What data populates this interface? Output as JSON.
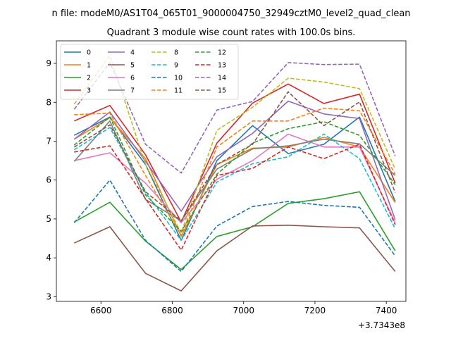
{
  "chart_data": {
    "type": "line",
    "suptitle": "n file: modeM0/AS1T04_065T01_9000004750_32949cztM0_level2_quad_clean",
    "title": "Quadrant 3 module wise count rates with 100.0s bins.",
    "xlabel": "",
    "ylabel": "",
    "x_offset_label": "+3.7343e8",
    "xlim": [
      6475,
      7455
    ],
    "ylim": [
      2.88,
      9.58
    ],
    "xticks": [
      6600,
      6800,
      7000,
      7200,
      7400
    ],
    "yticks": [
      3,
      4,
      5,
      6,
      7,
      8,
      9
    ],
    "x": [
      6525,
      6625,
      6725,
      6825,
      6925,
      7025,
      7125,
      7225,
      7325,
      7425
    ],
    "legend_position": "upper-left",
    "legend_ncol": 4,
    "series": [
      {
        "name": "0",
        "color": "#1f77b4",
        "style": "solid",
        "values": [
          7.15,
          7.62,
          6.4,
          4.45,
          6.5,
          7.4,
          6.68,
          6.92,
          7.62,
          5.45
        ]
      },
      {
        "name": "1",
        "color": "#ff7f0e",
        "style": "solid",
        "values": [
          7.05,
          7.6,
          6.55,
          4.55,
          6.4,
          6.82,
          6.85,
          7.1,
          6.85,
          5.42
        ]
      },
      {
        "name": "2",
        "color": "#2ca02c",
        "style": "solid",
        "values": [
          4.92,
          5.43,
          4.43,
          3.7,
          4.55,
          4.8,
          5.4,
          5.52,
          5.7,
          4.18
        ]
      },
      {
        "name": "3",
        "color": "#d62728",
        "style": "solid",
        "values": [
          7.52,
          7.92,
          6.65,
          4.92,
          6.95,
          7.98,
          8.47,
          7.97,
          8.21,
          5.92
        ]
      },
      {
        "name": "4",
        "color": "#9467bd",
        "style": "solid",
        "values": [
          7.05,
          7.75,
          6.48,
          5.2,
          6.6,
          7.2,
          8.03,
          7.7,
          7.58,
          4.98
        ]
      },
      {
        "name": "5",
        "color": "#8c564b",
        "style": "solid",
        "values": [
          4.38,
          4.8,
          3.6,
          3.15,
          4.18,
          4.82,
          4.84,
          4.8,
          4.77,
          3.65
        ]
      },
      {
        "name": "6",
        "color": "#e377c2",
        "style": "solid",
        "values": [
          6.5,
          6.7,
          5.92,
          4.9,
          6.02,
          6.5,
          7.18,
          6.85,
          6.85,
          4.9
        ]
      },
      {
        "name": "7",
        "color": "#7f7f7f",
        "style": "solid",
        "values": [
          6.48,
          7.52,
          5.5,
          4.95,
          6.28,
          6.8,
          6.88,
          7.05,
          6.93,
          6.12
        ]
      },
      {
        "name": "8",
        "color": "#bcbd22",
        "style": "dashed",
        "values": [
          7.95,
          9.2,
          6.4,
          4.65,
          7.28,
          7.87,
          8.62,
          8.52,
          8.35,
          6.28
        ]
      },
      {
        "name": "9",
        "color": "#17becf",
        "style": "dashed",
        "values": [
          6.78,
          7.35,
          5.68,
          4.45,
          5.95,
          6.42,
          6.6,
          7.18,
          6.55,
          4.75
        ]
      },
      {
        "name": "10",
        "color": "#1f77b4",
        "style": "dashed",
        "values": [
          4.9,
          6.0,
          4.45,
          3.65,
          4.82,
          5.32,
          5.45,
          5.35,
          5.3,
          4.05
        ]
      },
      {
        "name": "11",
        "color": "#ff7f0e",
        "style": "dashed",
        "values": [
          7.68,
          7.72,
          6.12,
          4.58,
          6.85,
          7.52,
          7.52,
          7.85,
          7.78,
          6.15
        ]
      },
      {
        "name": "12",
        "color": "#2ca02c",
        "style": "dashed",
        "values": [
          6.9,
          7.62,
          5.62,
          4.68,
          6.15,
          6.95,
          7.32,
          7.5,
          7.15,
          5.88
        ]
      },
      {
        "name": "13",
        "color": "#d62728",
        "style": "dashed",
        "values": [
          6.72,
          6.88,
          5.52,
          4.2,
          6.12,
          6.3,
          6.85,
          6.55,
          6.92,
          4.85
        ]
      },
      {
        "name": "14",
        "color": "#9467bd",
        "style": "dashed",
        "values": [
          7.82,
          9.02,
          6.92,
          6.18,
          7.8,
          8.02,
          9.02,
          8.97,
          8.98,
          6.62
        ]
      },
      {
        "name": "15",
        "color": "#8c564b",
        "style": "dashed",
        "values": [
          6.85,
          7.42,
          5.7,
          4.95,
          6.4,
          6.92,
          8.27,
          7.4,
          8.01,
          5.68
        ]
      }
    ]
  }
}
